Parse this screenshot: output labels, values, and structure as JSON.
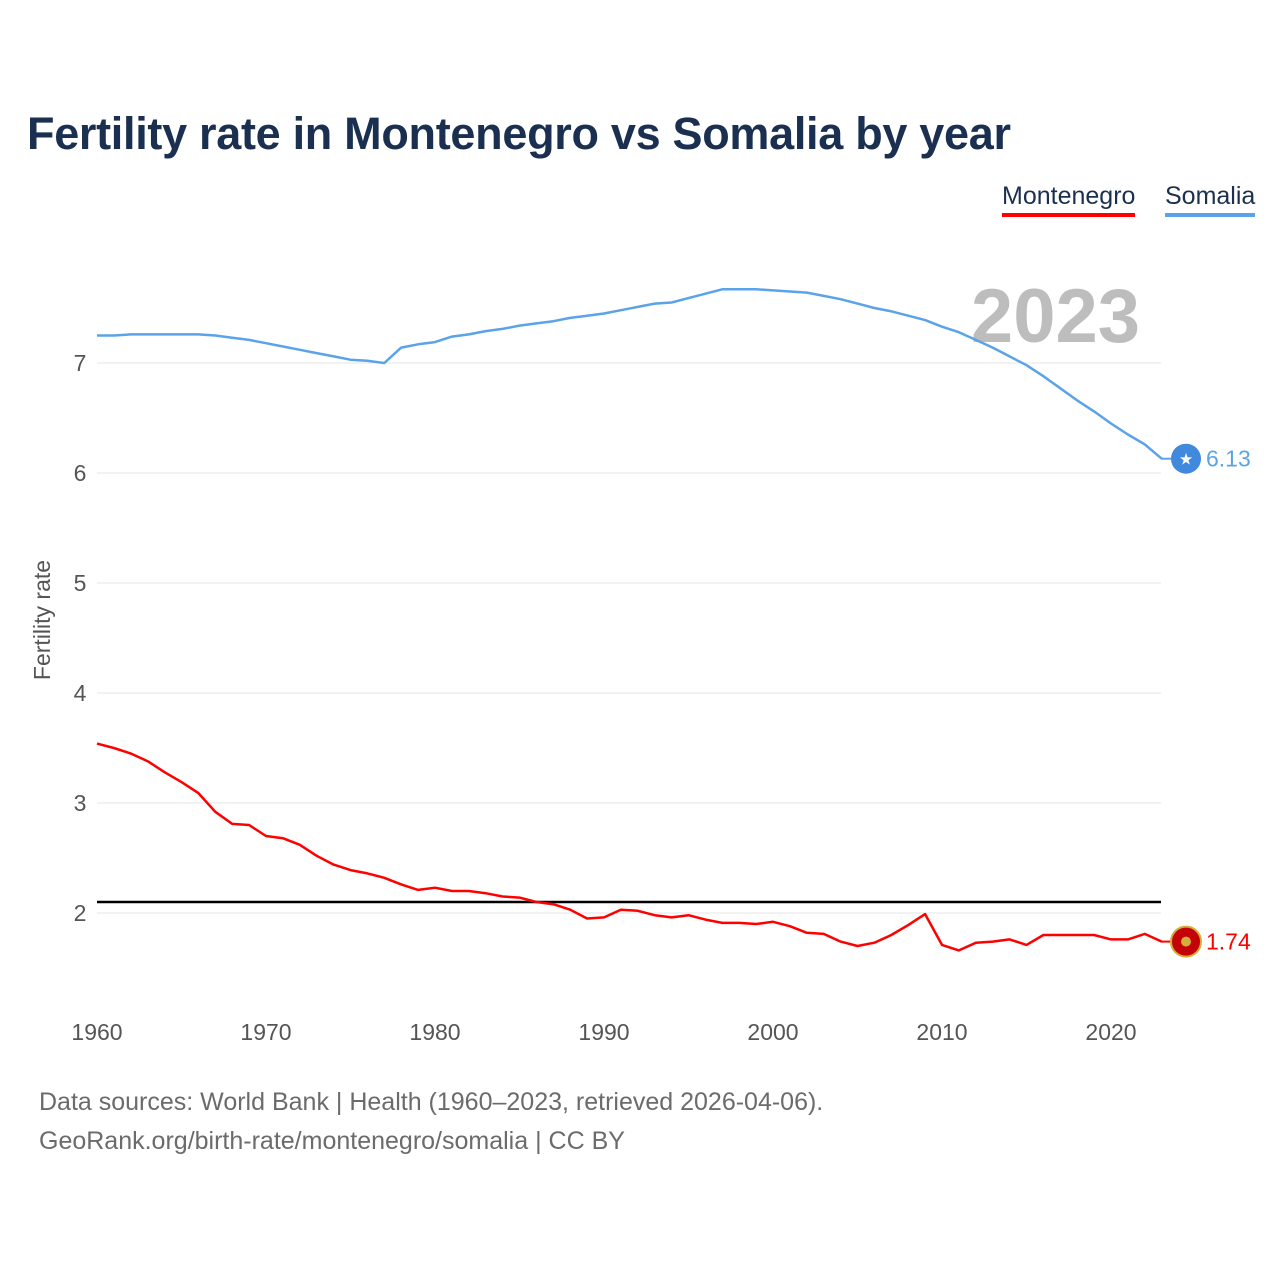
{
  "title": "Fertility rate in Montenegro vs Somalia by year",
  "legend": [
    {
      "name": "Montenegro",
      "color": "#ff0000"
    },
    {
      "name": "Somalia",
      "color": "#5ba3e8"
    }
  ],
  "year_label": "2023",
  "footer": {
    "line1": "Data sources: World Bank | Health (1960–2023, retrieved 2026-04-06).",
    "line2": "GeoRank.org/birth-rate/montenegro/somalia | CC BY"
  },
  "chart_data": {
    "type": "line",
    "title": "Fertility rate in Montenegro vs Somalia by year",
    "xlabel": "",
    "ylabel": "Fertility rate",
    "xlim": [
      1960,
      2023
    ],
    "ylim": [
      1.3,
      7.8
    ],
    "x_ticks": [
      "1960",
      "1970",
      "1980",
      "1990",
      "2000",
      "2010",
      "2020"
    ],
    "y_ticks": [
      "2",
      "3",
      "4",
      "5",
      "6",
      "7"
    ],
    "grid": true,
    "reference_line": 2.1,
    "x_start": 1960,
    "series": [
      {
        "name": "Montenegro",
        "color": "#ff0000",
        "end_label": "1.74",
        "icon": "montenegro-flag-icon",
        "values": [
          3.54,
          3.5,
          3.45,
          3.38,
          3.28,
          3.19,
          3.09,
          2.92,
          2.81,
          2.8,
          2.7,
          2.68,
          2.62,
          2.52,
          2.44,
          2.39,
          2.36,
          2.32,
          2.26,
          2.21,
          2.23,
          2.2,
          2.2,
          2.18,
          2.15,
          2.14,
          2.1,
          2.08,
          2.03,
          1.95,
          1.96,
          2.03,
          2.02,
          1.98,
          1.96,
          1.98,
          1.94,
          1.91,
          1.91,
          1.9,
          1.92,
          1.88,
          1.82,
          1.81,
          1.74,
          1.7,
          1.73,
          1.8,
          1.89,
          1.99,
          1.71,
          1.66,
          1.73,
          1.74,
          1.76,
          1.71,
          1.8,
          1.8,
          1.8,
          1.8,
          1.76,
          1.76,
          1.81,
          1.74
        ]
      },
      {
        "name": "Somalia",
        "color": "#5ba3e8",
        "end_label": "6.13",
        "icon": "somalia-flag-icon",
        "values": [
          7.25,
          7.25,
          7.26,
          7.26,
          7.26,
          7.26,
          7.26,
          7.25,
          7.23,
          7.21,
          7.18,
          7.15,
          7.12,
          7.09,
          7.06,
          7.03,
          7.02,
          7.0,
          7.14,
          7.17,
          7.19,
          7.24,
          7.26,
          7.29,
          7.31,
          7.34,
          7.36,
          7.38,
          7.41,
          7.43,
          7.45,
          7.48,
          7.51,
          7.54,
          7.55,
          7.59,
          7.63,
          7.67,
          7.67,
          7.67,
          7.66,
          7.65,
          7.64,
          7.61,
          7.58,
          7.54,
          7.5,
          7.47,
          7.43,
          7.39,
          7.33,
          7.28,
          7.21,
          7.14,
          7.06,
          6.98,
          6.88,
          6.77,
          6.66,
          6.56,
          6.45,
          6.35,
          6.26,
          6.13
        ]
      }
    ]
  }
}
